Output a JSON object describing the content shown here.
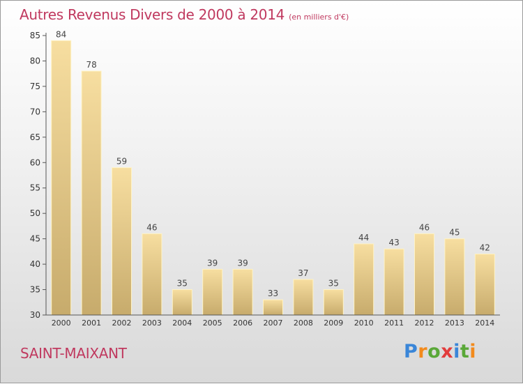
{
  "chart_data": {
    "type": "bar",
    "title": "Autres Revenus Divers de 2000 à 2014",
    "unit_note": "(en milliers d'€)",
    "categories": [
      "2000",
      "2001",
      "2002",
      "2003",
      "2004",
      "2005",
      "2006",
      "2007",
      "2008",
      "2009",
      "2010",
      "2011",
      "2012",
      "2013",
      "2014"
    ],
    "values": [
      84,
      78,
      59,
      46,
      35,
      39,
      39,
      33,
      37,
      35,
      44,
      43,
      46,
      45,
      42
    ],
    "ylim": [
      30,
      85
    ],
    "yticks": [
      30,
      35,
      40,
      45,
      50,
      55,
      60,
      65,
      70,
      75,
      80,
      85
    ],
    "grid": false,
    "bar_color": "#e8cf8a",
    "accent_color": "#c0395f"
  },
  "place_name": "SAINT-MAIXANT",
  "logo": {
    "text": "Proxiti",
    "colors": [
      "#3a86d8",
      "#f28a1c",
      "#5aa838",
      "#e23c3c",
      "#3a86d8",
      "#5aa838",
      "#f28a1c"
    ]
  }
}
